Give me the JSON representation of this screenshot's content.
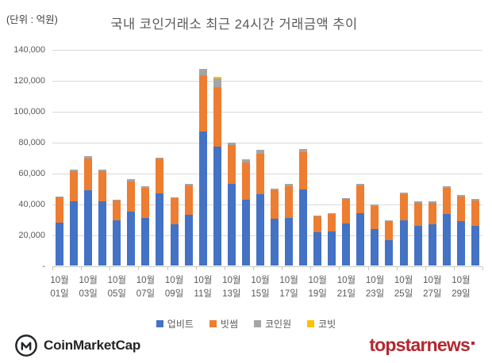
{
  "header": {
    "unit_label": "(단위 : 억원)",
    "title": "국내 코인거래소 최근 24시간 거래금액 추이"
  },
  "chart_data": {
    "type": "bar",
    "stacked": true,
    "title": "국내 코인거래소 최근 24시간 거래금액 추이",
    "unit": "억원",
    "ylim": [
      0,
      140000
    ],
    "grid": true,
    "legend_position": "bottom",
    "ytick_labels_top_down": [
      "140,000",
      "120,000",
      "100,000",
      "80,000",
      "60,000",
      "40,000",
      "20,000",
      "-"
    ],
    "x": [
      "10월 01일",
      "10월 02일",
      "10월 03일",
      "10월 04일",
      "10월 05일",
      "10월 06일",
      "10월 07일",
      "10월 08일",
      "10월 09일",
      "10월 10일",
      "10월 11일",
      "10월 12일",
      "10월 13일",
      "10월 14일",
      "10월 15일",
      "10월 16일",
      "10월 17일",
      "10월 18일",
      "10월 19일",
      "10월 20일",
      "10월 21일",
      "10월 22일",
      "10월 23일",
      "10월 24일",
      "10월 25일",
      "10월 26일",
      "10월 27일",
      "10월 28일",
      "10월 29일",
      "10월 30일"
    ],
    "x_axis_labels": [
      {
        "line1": "10월",
        "line2": "01일"
      },
      {
        "line1": "10월",
        "line2": "03일"
      },
      {
        "line1": "10월",
        "line2": "05일"
      },
      {
        "line1": "10월",
        "line2": "07일"
      },
      {
        "line1": "10월",
        "line2": "09일"
      },
      {
        "line1": "10월",
        "line2": "11일"
      },
      {
        "line1": "10월",
        "line2": "13일"
      },
      {
        "line1": "10월",
        "line2": "15일"
      },
      {
        "line1": "10월",
        "line2": "17일"
      },
      {
        "line1": "10월",
        "line2": "19일"
      },
      {
        "line1": "10월",
        "line2": "21일"
      },
      {
        "line1": "10월",
        "line2": "23일"
      },
      {
        "line1": "10월",
        "line2": "25일"
      },
      {
        "line1": "10월",
        "line2": "27일"
      },
      {
        "line1": "10월",
        "line2": "29일"
      }
    ],
    "series": [
      {
        "name": "업비트",
        "color": "#4472C4",
        "values": [
          27500,
          41500,
          48500,
          41500,
          29000,
          35000,
          31000,
          46500,
          26500,
          33000,
          86500,
          77000,
          53000,
          42500,
          46000,
          30500,
          31000,
          49500,
          21500,
          22000,
          27000,
          34000,
          23500,
          16500,
          29500,
          25500,
          26500,
          33500,
          28500,
          25500
        ]
      },
      {
        "name": "빗썸",
        "color": "#ED7D31",
        "values": [
          16500,
          19500,
          21000,
          19500,
          13000,
          19500,
          19500,
          22500,
          17000,
          19000,
          36500,
          38500,
          25000,
          24000,
          26500,
          18000,
          20500,
          24000,
          10500,
          11500,
          16000,
          18000,
          15000,
          12000,
          16500,
          15000,
          14000,
          17000,
          16000,
          16500
        ]
      },
      {
        "name": "코인원",
        "color": "#A5A5A5",
        "values": [
          500,
          1000,
          1500,
          1000,
          500,
          1500,
          1000,
          1000,
          500,
          1000,
          4000,
          5500,
          1500,
          2000,
          2500,
          1500,
          1500,
          2000,
          500,
          500,
          500,
          1000,
          1000,
          500,
          1000,
          1000,
          1000,
          1000,
          1000,
          1000
        ]
      },
      {
        "name": "코빗",
        "color": "#FFC000",
        "values": [
          0,
          0,
          0,
          0,
          0,
          0,
          0,
          0,
          0,
          0,
          0,
          1000,
          0,
          0,
          0,
          0,
          0,
          0,
          0,
          0,
          0,
          0,
          0,
          0,
          0,
          0,
          0,
          0,
          0,
          0
        ]
      }
    ]
  },
  "footer": {
    "coinmarketcap": "CoinMarketCap",
    "topstarnews": "topstarnews"
  }
}
